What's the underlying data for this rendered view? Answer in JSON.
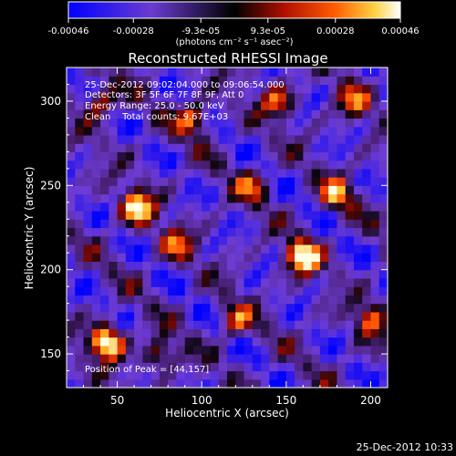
{
  "chart_data": {
    "type": "heatmap",
    "title": "Reconstructed RHESSI Image",
    "xlabel": "Heliocentric X (arcsec)",
    "ylabel": "Heliocentric Y (arcsec)",
    "xlim": [
      20,
      210
    ],
    "ylim": [
      130,
      320
    ],
    "x_ticks": [
      "50",
      "100",
      "150",
      "200"
    ],
    "y_ticks": [
      "150",
      "200",
      "250",
      "300"
    ],
    "colorbar": {
      "range": [
        -0.00046,
        0.00046
      ],
      "ticks": [
        "-0.00046",
        "-0.00028",
        "-9.3e-05",
        "9.3e-05",
        "0.00028",
        "0.00046"
      ],
      "unit_label": "(photons cm⁻² s⁻¹ asec⁻²)"
    },
    "annotations": {
      "time_range": "25-Dec-2012 09:02:04.000 to 09:06:54.000",
      "detectors": "Detectors: 3F 5F 6F 7F 8F 9F, Att 0",
      "energy_range": "Energy Range: 25.0 - 50.0 keV",
      "method": "Clean    Total counts: 9.67E+03",
      "peak_position": "Position of Peak = [44,157]"
    },
    "hotspots": [
      {
        "x": 44,
        "y": 157,
        "level": 1.0
      },
      {
        "x": 160,
        "y": 208,
        "level": 0.95
      },
      {
        "x": 62,
        "y": 237,
        "level": 0.85
      },
      {
        "x": 180,
        "y": 245,
        "level": 0.6
      },
      {
        "x": 95,
        "y": 290,
        "level": 0.6
      },
      {
        "x": 145,
        "y": 300,
        "level": 0.55
      },
      {
        "x": 200,
        "y": 170,
        "level": 0.55
      },
      {
        "x": 85,
        "y": 215,
        "level": 0.5
      },
      {
        "x": 120,
        "y": 170,
        "level": 0.5
      },
      {
        "x": 40,
        "y": 300,
        "level": 0.55
      },
      {
        "x": 190,
        "y": 300,
        "level": 0.5
      },
      {
        "x": 75,
        "y": 150,
        "level": 0.5
      },
      {
        "x": 130,
        "y": 250,
        "level": 0.45
      }
    ],
    "colors": {
      "background": "#000000",
      "foreground": "#ffffff"
    }
  },
  "footer": {
    "timestamp": "25-Dec-2012 10:33"
  }
}
